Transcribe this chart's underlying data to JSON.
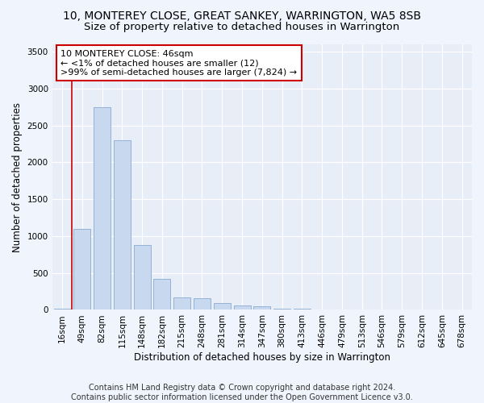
{
  "title": "10, MONTEREY CLOSE, GREAT SANKEY, WARRINGTON, WA5 8SB",
  "subtitle": "Size of property relative to detached houses in Warrington",
  "xlabel": "Distribution of detached houses by size in Warrington",
  "ylabel": "Number of detached properties",
  "bar_labels": [
    "16sqm",
    "49sqm",
    "82sqm",
    "115sqm",
    "148sqm",
    "182sqm",
    "215sqm",
    "248sqm",
    "281sqm",
    "314sqm",
    "347sqm",
    "380sqm",
    "413sqm",
    "446sqm",
    "479sqm",
    "513sqm",
    "546sqm",
    "579sqm",
    "612sqm",
    "645sqm",
    "678sqm"
  ],
  "bar_values": [
    12,
    1100,
    2750,
    2300,
    880,
    420,
    170,
    160,
    95,
    60,
    50,
    20,
    12,
    8,
    5,
    3,
    2,
    2,
    1,
    1,
    1
  ],
  "bar_color": "#c8d8ee",
  "bar_edge_color": "#8aaad0",
  "annotation_text_line1": "10 MONTEREY CLOSE: 46sqm",
  "annotation_text_line2": "← <1% of detached houses are smaller (12)",
  "annotation_text_line3": ">99% of semi-detached houses are larger (7,824) →",
  "annotation_box_facecolor": "#ffffff",
  "annotation_box_edgecolor": "#cc0000",
  "marker_line_color": "#cc0000",
  "ylim": [
    0,
    3600
  ],
  "yticks": [
    0,
    500,
    1000,
    1500,
    2000,
    2500,
    3000,
    3500
  ],
  "footer_text": "Contains HM Land Registry data © Crown copyright and database right 2024.\nContains public sector information licensed under the Open Government Licence v3.0.",
  "bg_color": "#f0f4fc",
  "plot_bg_color": "#e8eef8",
  "grid_color": "#ffffff",
  "title_fontsize": 10,
  "subtitle_fontsize": 9.5,
  "axis_label_fontsize": 8.5,
  "tick_fontsize": 7.5,
  "annotation_fontsize": 8,
  "footer_fontsize": 7
}
